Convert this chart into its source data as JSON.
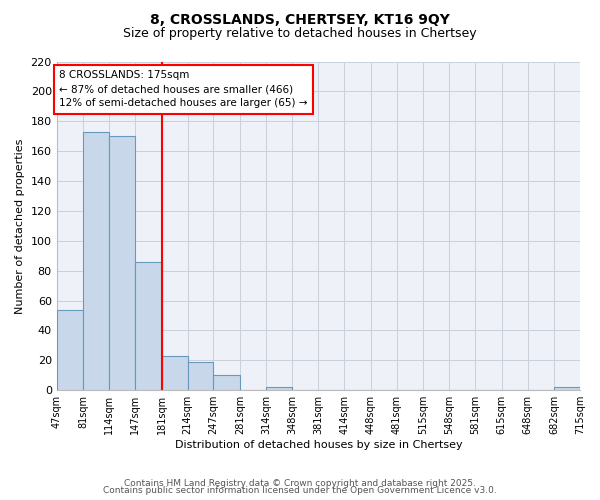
{
  "title": "8, CROSSLANDS, CHERTSEY, KT16 9QY",
  "subtitle": "Size of property relative to detached houses in Chertsey",
  "xlabel": "Distribution of detached houses by size in Chertsey",
  "ylabel": "Number of detached properties",
  "bar_edges": [
    47,
    81,
    114,
    147,
    181,
    214,
    247,
    281,
    314,
    348,
    381,
    414,
    448,
    481,
    515,
    548,
    581,
    615,
    648,
    682,
    715
  ],
  "bar_heights": [
    54,
    173,
    170,
    86,
    23,
    19,
    10,
    0,
    2,
    0,
    0,
    0,
    0,
    0,
    0,
    0,
    0,
    0,
    0,
    2
  ],
  "bar_color": "#c8d8ea",
  "bar_edge_color": "#6699bb",
  "vline_x": 181,
  "vline_color": "red",
  "ylim": [
    0,
    220
  ],
  "yticks": [
    0,
    20,
    40,
    60,
    80,
    100,
    120,
    140,
    160,
    180,
    200,
    220
  ],
  "annotation_title": "8 CROSSLANDS: 175sqm",
  "annotation_line1": "← 87% of detached houses are smaller (466)",
  "annotation_line2": "12% of semi-detached houses are larger (65) →",
  "annotation_box_color": "white",
  "annotation_border_color": "red",
  "footer1": "Contains HM Land Registry data © Crown copyright and database right 2025.",
  "footer2": "Contains public sector information licensed under the Open Government Licence v3.0.",
  "background_color": "white",
  "grid_color": "#c8d0dc",
  "plot_bg_color": "#eef2f8"
}
